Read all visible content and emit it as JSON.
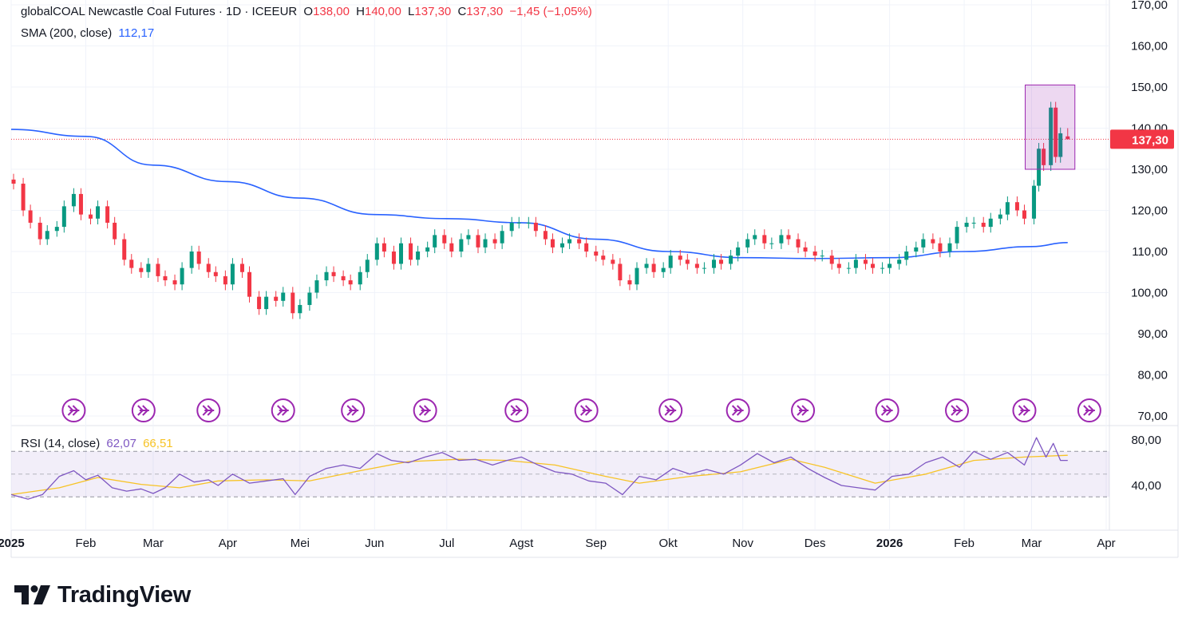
{
  "header": {
    "symbol": "globalCOAL Newcastle Coal Futures · 1D · ICEEUR",
    "open_label": "O",
    "open": "138,00",
    "high_label": "H",
    "high": "140,00",
    "low_label": "L",
    "low": "137,30",
    "close_label": "C",
    "close": "137,30",
    "change": "−1,45 (−1,05%)"
  },
  "sma": {
    "label": "SMA (200, close)",
    "value": "112,17"
  },
  "rsi": {
    "label": "RSI (14, close)",
    "value": "62,07",
    "ma_value": "66,51"
  },
  "price_tag": "137,30",
  "brand": "TradingView",
  "colors": {
    "up": "#089981",
    "down": "#f23645",
    "sma": "#2962ff",
    "rsi": "#7e57c2",
    "rsi_ma": "#f7c325",
    "event": "#9c27b0"
  },
  "chart_data": [
    {
      "type": "candlestick",
      "ylim": [
        70,
        170
      ],
      "y_ticks": [
        "70,00",
        "80,00",
        "90,00",
        "100,00",
        "110,00",
        "120,00",
        "130,00",
        "140,00",
        "150,00",
        "160,00",
        "170,00"
      ],
      "x_ticks": [
        "2025",
        "Feb",
        "Mar",
        "Apr",
        "Mei",
        "Jun",
        "Jul",
        "Agst",
        "Sep",
        "Okt",
        "Nov",
        "Des",
        "2026",
        "Feb",
        "Mar",
        "Apr"
      ],
      "x_tick_dates": [
        "2025-01-01",
        "2025-02-01",
        "2025-03-01",
        "2025-04-01",
        "2025-05-01",
        "2025-06-01",
        "2025-07-01",
        "2025-08-01",
        "2025-09-01",
        "2025-10-01",
        "2025-11-01",
        "2025-12-01",
        "2026-01-01",
        "2026-02-01",
        "2026-03-01",
        "2026-04-01"
      ],
      "close_series": [
        [
          "2025-01-02",
          126.5
        ],
        [
          "2025-01-06",
          120
        ],
        [
          "2025-01-09",
          117
        ],
        [
          "2025-01-13",
          113
        ],
        [
          "2025-01-16",
          115
        ],
        [
          "2025-01-20",
          116
        ],
        [
          "2025-01-23",
          121
        ],
        [
          "2025-01-27",
          124
        ],
        [
          "2025-01-30",
          119
        ],
        [
          "2025-02-03",
          118
        ],
        [
          "2025-02-06",
          121
        ],
        [
          "2025-02-10",
          117
        ],
        [
          "2025-02-13",
          113
        ],
        [
          "2025-02-17",
          108
        ],
        [
          "2025-02-20",
          106
        ],
        [
          "2025-02-24",
          105
        ],
        [
          "2025-02-27",
          107
        ],
        [
          "2025-03-03",
          104
        ],
        [
          "2025-03-06",
          103
        ],
        [
          "2025-03-10",
          102
        ],
        [
          "2025-03-13",
          106
        ],
        [
          "2025-03-17",
          110
        ],
        [
          "2025-03-20",
          107
        ],
        [
          "2025-03-24",
          105
        ],
        [
          "2025-03-27",
          104
        ],
        [
          "2025-03-31",
          102
        ],
        [
          "2025-04-03",
          107
        ],
        [
          "2025-04-07",
          105
        ],
        [
          "2025-04-10",
          99
        ],
        [
          "2025-04-14",
          96
        ],
        [
          "2025-04-17",
          99
        ],
        [
          "2025-04-21",
          98
        ],
        [
          "2025-04-24",
          100
        ],
        [
          "2025-04-28",
          95
        ],
        [
          "2025-05-01",
          97
        ],
        [
          "2025-05-05",
          100
        ],
        [
          "2025-05-08",
          103
        ],
        [
          "2025-05-12",
          105
        ],
        [
          "2025-05-15",
          104
        ],
        [
          "2025-05-19",
          103
        ],
        [
          "2025-05-22",
          102
        ],
        [
          "2025-05-26",
          105
        ],
        [
          "2025-05-29",
          108
        ],
        [
          "2025-06-02",
          112
        ],
        [
          "2025-06-05",
          110
        ],
        [
          "2025-06-09",
          107
        ],
        [
          "2025-06-12",
          112
        ],
        [
          "2025-06-16",
          108
        ],
        [
          "2025-06-19",
          110
        ],
        [
          "2025-06-23",
          111
        ],
        [
          "2025-06-26",
          114
        ],
        [
          "2025-06-30",
          112
        ],
        [
          "2025-07-03",
          110
        ],
        [
          "2025-07-07",
          113
        ],
        [
          "2025-07-10",
          114
        ],
        [
          "2025-07-14",
          111
        ],
        [
          "2025-07-17",
          113
        ],
        [
          "2025-07-21",
          112
        ],
        [
          "2025-07-24",
          115
        ],
        [
          "2025-07-28",
          117
        ],
        [
          "2025-07-31",
          117
        ],
        [
          "2025-08-04",
          117
        ],
        [
          "2025-08-07",
          115
        ],
        [
          "2025-08-11",
          113
        ],
        [
          "2025-08-14",
          111
        ],
        [
          "2025-08-18",
          112
        ],
        [
          "2025-08-21",
          113
        ],
        [
          "2025-08-25",
          112
        ],
        [
          "2025-08-28",
          110
        ],
        [
          "2025-09-01",
          109
        ],
        [
          "2025-09-04",
          108
        ],
        [
          "2025-09-08",
          107
        ],
        [
          "2025-09-11",
          103
        ],
        [
          "2025-09-15",
          102
        ],
        [
          "2025-09-18",
          106
        ],
        [
          "2025-09-22",
          107
        ],
        [
          "2025-09-25",
          105
        ],
        [
          "2025-09-29",
          106
        ],
        [
          "2025-10-02",
          109
        ],
        [
          "2025-10-06",
          108
        ],
        [
          "2025-10-09",
          107
        ],
        [
          "2025-10-13",
          106
        ],
        [
          "2025-10-16",
          106
        ],
        [
          "2025-10-20",
          108
        ],
        [
          "2025-10-23",
          107
        ],
        [
          "2025-10-27",
          109
        ],
        [
          "2025-10-30",
          111
        ],
        [
          "2025-11-03",
          113
        ],
        [
          "2025-11-06",
          114
        ],
        [
          "2025-11-10",
          112
        ],
        [
          "2025-11-13",
          112
        ],
        [
          "2025-11-17",
          114
        ],
        [
          "2025-11-20",
          113
        ],
        [
          "2025-11-24",
          111
        ],
        [
          "2025-11-27",
          110
        ],
        [
          "2025-12-01",
          109
        ],
        [
          "2025-12-04",
          109
        ],
        [
          "2025-12-08",
          107
        ],
        [
          "2025-12-11",
          106
        ],
        [
          "2025-12-15",
          106
        ],
        [
          "2025-12-18",
          108
        ],
        [
          "2025-12-22",
          107
        ],
        [
          "2025-12-25",
          106
        ],
        [
          "2025-12-29",
          106
        ],
        [
          "2026-01-01",
          107
        ],
        [
          "2026-01-05",
          108
        ],
        [
          "2026-01-08",
          110
        ],
        [
          "2026-01-12",
          111
        ],
        [
          "2026-01-15",
          113
        ],
        [
          "2026-01-19",
          112
        ],
        [
          "2026-01-22",
          110
        ],
        [
          "2026-01-26",
          112
        ],
        [
          "2026-01-29",
          116
        ],
        [
          "2026-02-02",
          117
        ],
        [
          "2026-02-05",
          117
        ],
        [
          "2026-02-09",
          116
        ],
        [
          "2026-02-12",
          118
        ],
        [
          "2026-02-16",
          119
        ],
        [
          "2026-02-19",
          122
        ],
        [
          "2026-02-23",
          120
        ],
        [
          "2026-02-26",
          118
        ],
        [
          "2026-03-02",
          126
        ],
        [
          "2026-03-04",
          135
        ],
        [
          "2026-03-06",
          131
        ],
        [
          "2026-03-09",
          145
        ],
        [
          "2026-03-11",
          133
        ],
        [
          "2026-03-13",
          138.75
        ],
        [
          "2026-03-16",
          137.3
        ]
      ],
      "last": {
        "open": 138.0,
        "high": 140.0,
        "low": 137.3,
        "close": 137.3
      },
      "sma_series": [
        [
          "2025-01-01",
          139.7
        ],
        [
          "2025-02-01",
          138
        ],
        [
          "2025-03-01",
          131
        ],
        [
          "2025-04-01",
          127
        ],
        [
          "2025-05-01",
          123
        ],
        [
          "2025-06-01",
          119
        ],
        [
          "2025-07-01",
          118
        ],
        [
          "2025-08-01",
          117
        ],
        [
          "2025-09-01",
          113
        ],
        [
          "2025-10-01",
          110
        ],
        [
          "2025-11-01",
          108.5
        ],
        [
          "2025-12-01",
          108.3
        ],
        [
          "2026-01-01",
          108.5
        ],
        [
          "2026-02-01",
          110
        ],
        [
          "2026-03-01",
          111.2
        ],
        [
          "2026-03-16",
          112.17
        ]
      ],
      "highlight_box": {
        "x0": "2026-03-01",
        "x1": "2026-03-17",
        "y0": 130,
        "y1": 150.5
      },
      "event_markers": [
        "2025-01-27",
        "2025-02-25",
        "2025-03-24",
        "2025-04-24",
        "2025-05-23",
        "2025-06-22",
        "2025-07-30",
        "2025-08-28",
        "2025-10-02",
        "2025-10-30",
        "2025-11-26",
        "2025-12-31",
        "2026-01-29",
        "2026-02-26",
        "2026-03-25"
      ]
    },
    {
      "type": "line",
      "name": "RSI",
      "ylim": [
        20,
        90
      ],
      "y_ticks": [
        "40,00",
        "80,00"
      ],
      "bands": {
        "upper": 70,
        "middle": 50,
        "lower": 30
      },
      "rsi_series": [
        [
          "2025-01-01",
          32
        ],
        [
          "2025-01-08",
          28
        ],
        [
          "2025-01-14",
          32
        ],
        [
          "2025-01-21",
          48
        ],
        [
          "2025-01-27",
          53
        ],
        [
          "2025-02-01",
          45
        ],
        [
          "2025-02-06",
          49
        ],
        [
          "2025-02-12",
          38
        ],
        [
          "2025-02-18",
          35
        ],
        [
          "2025-02-24",
          37
        ],
        [
          "2025-03-01",
          33
        ],
        [
          "2025-03-06",
          38
        ],
        [
          "2025-03-12",
          50
        ],
        [
          "2025-03-18",
          43
        ],
        [
          "2025-03-24",
          45
        ],
        [
          "2025-03-28",
          40
        ],
        [
          "2025-04-03",
          50
        ],
        [
          "2025-04-10",
          42
        ],
        [
          "2025-04-17",
          44
        ],
        [
          "2025-04-24",
          46
        ],
        [
          "2025-04-29",
          32
        ],
        [
          "2025-05-05",
          48
        ],
        [
          "2025-05-12",
          55
        ],
        [
          "2025-05-19",
          58
        ],
        [
          "2025-05-26",
          55
        ],
        [
          "2025-06-02",
          68
        ],
        [
          "2025-06-08",
          62
        ],
        [
          "2025-06-15",
          60
        ],
        [
          "2025-06-22",
          65
        ],
        [
          "2025-06-29",
          69
        ],
        [
          "2025-07-06",
          62
        ],
        [
          "2025-07-13",
          63
        ],
        [
          "2025-07-20",
          58
        ],
        [
          "2025-07-26",
          62
        ],
        [
          "2025-08-01",
          65
        ],
        [
          "2025-08-08",
          58
        ],
        [
          "2025-08-15",
          52
        ],
        [
          "2025-08-22",
          50
        ],
        [
          "2025-08-29",
          44
        ],
        [
          "2025-09-05",
          42
        ],
        [
          "2025-09-12",
          32
        ],
        [
          "2025-09-19",
          48
        ],
        [
          "2025-09-26",
          45
        ],
        [
          "2025-10-03",
          55
        ],
        [
          "2025-10-10",
          50
        ],
        [
          "2025-10-17",
          54
        ],
        [
          "2025-10-24",
          50
        ],
        [
          "2025-10-31",
          58
        ],
        [
          "2025-11-07",
          68
        ],
        [
          "2025-11-14",
          60
        ],
        [
          "2025-11-21",
          65
        ],
        [
          "2025-11-28",
          55
        ],
        [
          "2025-12-05",
          47
        ],
        [
          "2025-12-12",
          40
        ],
        [
          "2025-12-19",
          38
        ],
        [
          "2025-12-26",
          36
        ],
        [
          "2026-01-02",
          48
        ],
        [
          "2026-01-09",
          50
        ],
        [
          "2026-01-16",
          60
        ],
        [
          "2026-01-23",
          65
        ],
        [
          "2026-01-30",
          56
        ],
        [
          "2026-02-05",
          70
        ],
        [
          "2026-02-12",
          63
        ],
        [
          "2026-02-19",
          69
        ],
        [
          "2026-02-26",
          58
        ],
        [
          "2026-03-03",
          82
        ],
        [
          "2026-03-07",
          65
        ],
        [
          "2026-03-10",
          77
        ],
        [
          "2026-03-13",
          62
        ],
        [
          "2026-03-16",
          62.07
        ]
      ],
      "rsi_ma_series": [
        [
          "2025-01-01",
          32
        ],
        [
          "2025-01-21",
          38
        ],
        [
          "2025-02-06",
          47
        ],
        [
          "2025-02-24",
          41
        ],
        [
          "2025-03-12",
          38
        ],
        [
          "2025-03-28",
          44
        ],
        [
          "2025-04-17",
          45
        ],
        [
          "2025-05-05",
          44
        ],
        [
          "2025-05-26",
          53
        ],
        [
          "2025-06-15",
          61
        ],
        [
          "2025-07-06",
          63
        ],
        [
          "2025-07-26",
          62
        ],
        [
          "2025-08-15",
          58
        ],
        [
          "2025-09-05",
          48
        ],
        [
          "2025-09-19",
          42
        ],
        [
          "2025-10-10",
          48
        ],
        [
          "2025-10-31",
          52
        ],
        [
          "2025-11-21",
          63
        ],
        [
          "2025-12-05",
          56
        ],
        [
          "2025-12-26",
          42
        ],
        [
          "2026-01-16",
          50
        ],
        [
          "2026-02-05",
          62
        ],
        [
          "2026-02-26",
          65
        ],
        [
          "2026-03-16",
          66.51
        ]
      ]
    }
  ]
}
